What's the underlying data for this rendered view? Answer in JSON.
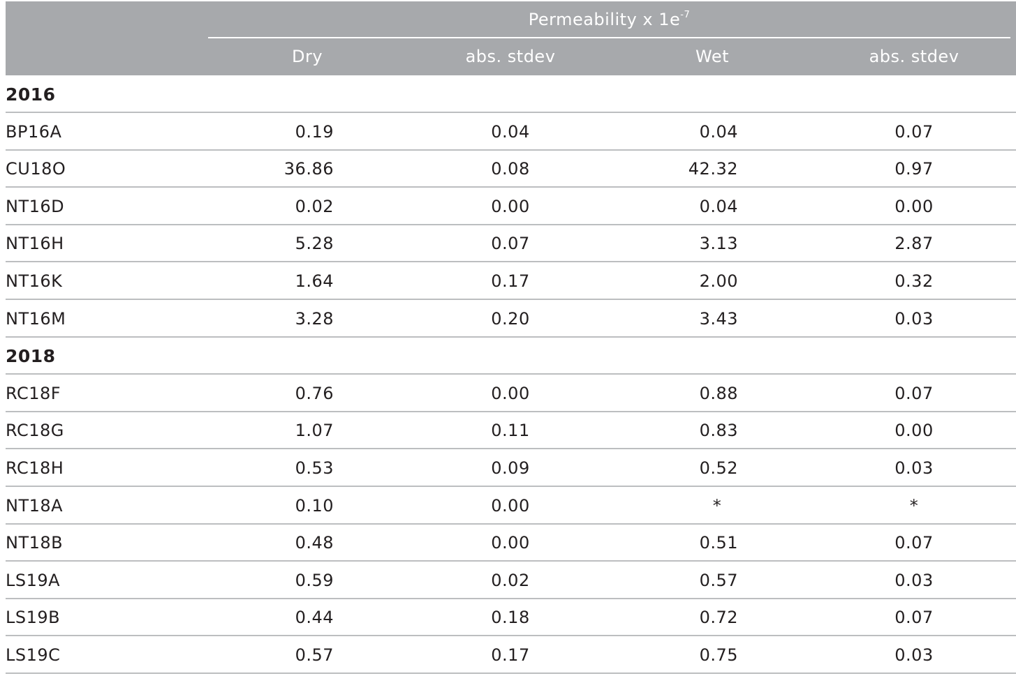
{
  "header": {
    "group_title": "Permeability x 1e",
    "group_title_exp": "-7",
    "columns": [
      "Dry",
      "abs. stdev",
      "Wet",
      "abs. stdev"
    ]
  },
  "groups": [
    {
      "year": "2016",
      "rows": [
        {
          "sample": "BP16A",
          "dry": "0.19",
          "dry_sd": "0.04",
          "wet": "0.04",
          "wet_sd": "0.07"
        },
        {
          "sample": "CU18O",
          "dry": "36.86",
          "dry_sd": "0.08",
          "wet": "42.32",
          "wet_sd": "0.97"
        },
        {
          "sample": "NT16D",
          "dry": "0.02",
          "dry_sd": "0.00",
          "wet": "0.04",
          "wet_sd": "0.00"
        },
        {
          "sample": "NT16H",
          "dry": "5.28",
          "dry_sd": "0.07",
          "wet": "3.13",
          "wet_sd": "2.87"
        },
        {
          "sample": "NT16K",
          "dry": "1.64",
          "dry_sd": "0.17",
          "wet": "2.00",
          "wet_sd": "0.32"
        },
        {
          "sample": "NT16M",
          "dry": "3.28",
          "dry_sd": "0.20",
          "wet": "3.43",
          "wet_sd": "0.03"
        }
      ]
    },
    {
      "year": "2018",
      "rows": [
        {
          "sample": "RC18F",
          "dry": "0.76",
          "dry_sd": "0.00",
          "wet": "0.88",
          "wet_sd": "0.07"
        },
        {
          "sample": "RC18G",
          "dry": "1.07",
          "dry_sd": "0.11",
          "wet": "0.83",
          "wet_sd": "0.00"
        },
        {
          "sample": "RC18H",
          "dry": "0.53",
          "dry_sd": "0.09",
          "wet": "0.52",
          "wet_sd": "0.03"
        },
        {
          "sample": "NT18A",
          "dry": "0.10",
          "dry_sd": "0.00",
          "wet": "*",
          "wet_sd": "*"
        },
        {
          "sample": "NT18B",
          "dry": "0.48",
          "dry_sd": "0.00",
          "wet": "0.51",
          "wet_sd": "0.07"
        },
        {
          "sample": "LS19A",
          "dry": "0.59",
          "dry_sd": "0.02",
          "wet": "0.57",
          "wet_sd": "0.03"
        },
        {
          "sample": "LS19B",
          "dry": "0.44",
          "dry_sd": "0.18",
          "wet": "0.72",
          "wet_sd": "0.07"
        },
        {
          "sample": "LS19C",
          "dry": "0.57",
          "dry_sd": "0.17",
          "wet": "0.75",
          "wet_sd": "0.03"
        }
      ]
    }
  ]
}
